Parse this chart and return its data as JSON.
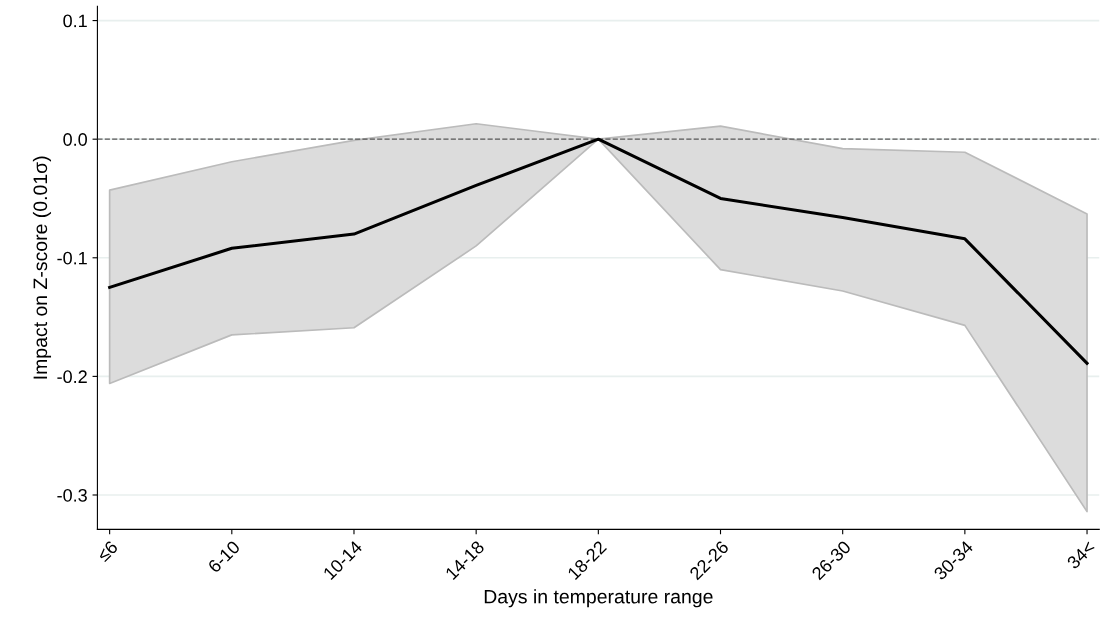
{
  "chart_data": {
    "type": "line",
    "xlabel": "Days in temperature range",
    "ylabel": "Impact on Z-score (0.01σ)",
    "categories": [
      "≤6",
      "6-10",
      "10-14",
      "14-18",
      "18-22",
      "22-26",
      "26-30",
      "30-34",
      "34<"
    ],
    "series": [
      {
        "color": "#000000",
        "values": [
          -0.125,
          -0.092,
          -0.08,
          -0.039,
          0,
          -0.05,
          -0.066,
          -0.084,
          -0.189
        ],
        "lower": [
          -0.206,
          -0.165,
          -0.159,
          -0.09,
          0,
          -0.11,
          -0.128,
          -0.157,
          -0.314
        ],
        "upper": [
          -0.043,
          -0.019,
          -0.001,
          0.013,
          0,
          0.011,
          -0.008,
          -0.011,
          -0.063
        ]
      }
    ],
    "ylim": [
      -0.329,
      0.112
    ],
    "yticks": [
      {
        "value": -0.3,
        "label": "-0.3"
      },
      {
        "value": -0.2,
        "label": "-0.2"
      },
      {
        "value": -0.1,
        "label": "-0.1"
      },
      {
        "value": 0,
        "label": "0.0"
      },
      {
        "value": 0.1,
        "label": "0.1"
      }
    ],
    "grid": "y",
    "marker": "none",
    "line_style": "solid",
    "ref_lines": [
      {
        "axis": "y",
        "value": 0,
        "color": "#555555",
        "line_style": "dashed"
      }
    ]
  }
}
